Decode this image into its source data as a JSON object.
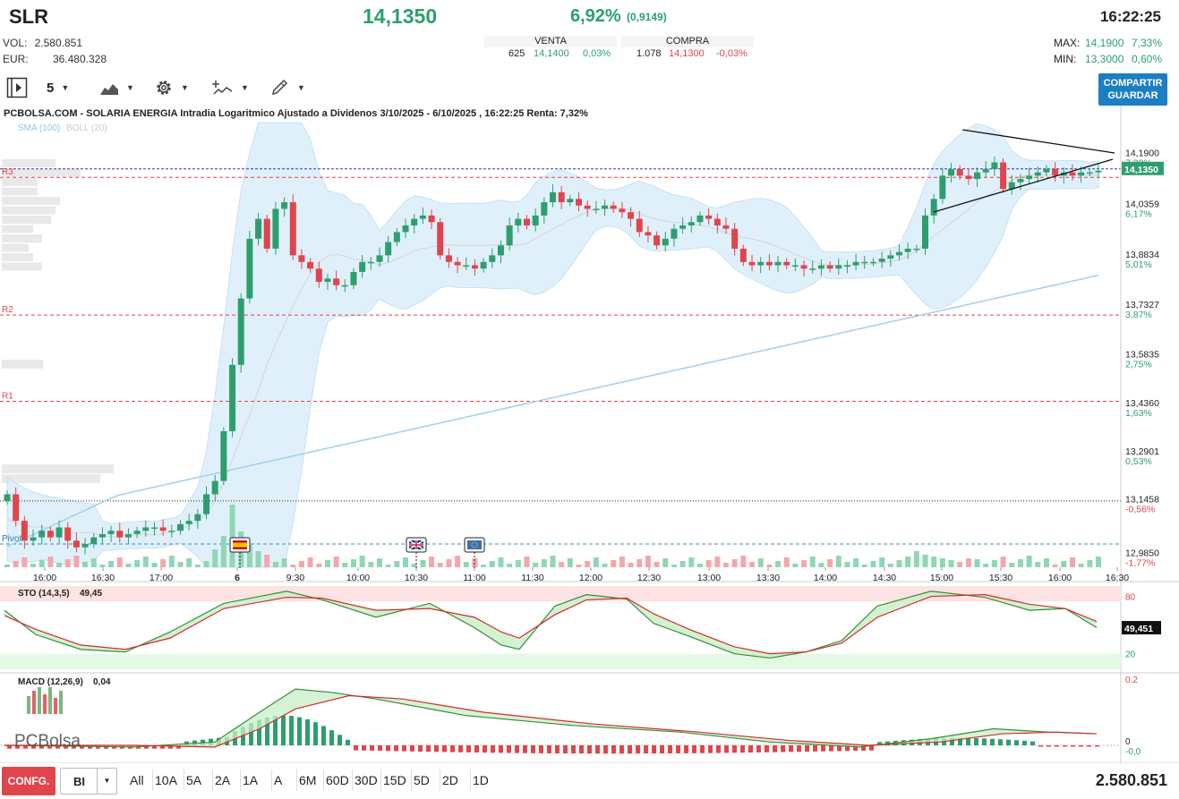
{
  "header": {
    "ticker": "SLR",
    "last_price": "14,1350",
    "change_pct": "6,92%",
    "change_abs": "(0,9149)",
    "time": "16:22:25",
    "vol_label": "VOL:",
    "vol_value": "2.580.851",
    "eur_label": "EUR:",
    "eur_value": "36.480.328",
    "venta": {
      "title": "VENTA",
      "qty": "625",
      "price": "14,1400",
      "pct": "0,03%"
    },
    "compra": {
      "title": "COMPRA",
      "qty": "1.078",
      "price": "14,1300",
      "pct": "-0,03%"
    },
    "max_label": "MAX:",
    "max_price": "14,1900",
    "max_pct": "7,33%",
    "min_label": "MIN:",
    "min_price": "13,3000",
    "min_pct": "0,60%"
  },
  "toolbar": {
    "play_icon": "panel-toggle-icon",
    "interval": "5",
    "chart_type_icon": "mountain-chart-icon",
    "settings_icon": "gear-icon",
    "indicators_icon": "indicators-icon",
    "drawing_icon": "pencil-icon",
    "share_line1": "COMPARTIR",
    "share_line2": "GUARDAR"
  },
  "chart_title": "PCBOLSA.COM - SOLARIA ENERGIA Intradia Logaritmico Ajustado a Dividenos 3/10/2025 - 6/10/2025 , 16:22:25 Renta: 7,32%",
  "legend": {
    "sma": "SMA (100)",
    "boll": "BOLL (20)"
  },
  "levels": {
    "r3": "R3",
    "r2": "R2",
    "r1": "R1",
    "pivot": "Pivot"
  },
  "price_axis": [
    {
      "price": "14,1900",
      "pct": "7,33%"
    },
    {
      "price": "14,0359",
      "pct": "6,17%"
    },
    {
      "price": "13,8834",
      "pct": "5,01%"
    },
    {
      "price": "13,7327",
      "pct": "3,87%"
    },
    {
      "price": "13,5835",
      "pct": "2,75%"
    },
    {
      "price": "13,4360",
      "pct": "1,63%"
    },
    {
      "price": "13,2901",
      "pct": "0,53%"
    },
    {
      "price": "13,1458",
      "pct": "-0,56%"
    },
    {
      "price": "12,9850",
      "pct": "-1,77%"
    }
  ],
  "current_price_tag": "14,1350",
  "time_axis": [
    "16:00",
    "16:30",
    "17:00",
    "6",
    "9:30",
    "10:00",
    "10:30",
    "11:00",
    "11:30",
    "12:00",
    "12:30",
    "13:00",
    "13:30",
    "14:00",
    "14:30",
    "15:00",
    "15:30",
    "16:00",
    "16:30"
  ],
  "event_flags": [
    "spain-flag-icon",
    "uk-flag-icon",
    "eu-flag-icon"
  ],
  "sto": {
    "label": "STO (14,3,5)",
    "value": "49,45",
    "tag": "49,451",
    "upper": "80",
    "lower": "20"
  },
  "macd": {
    "label": "MACD (12,26,9)",
    "value": "0,04",
    "axis_top": "0,2",
    "axis_zero": "0",
    "axis_zero2": "-0,0"
  },
  "logo_text": "PCBolsa",
  "bottom": {
    "conf": "CONFG.",
    "mode": "BI",
    "ranges": [
      "All",
      "10A",
      "5A",
      "2A",
      "1A",
      "A",
      "6M",
      "60D",
      "30D",
      "15D",
      "5D",
      "2D",
      "1D"
    ],
    "volume": "2.580.851"
  },
  "chart_data": {
    "type": "candlestick",
    "title": "PCBOLSA.COM - SOLARIA ENERGIA Intradia Logaritmico Ajustado a Dividenos 3/10/2025 - 6/10/2025 , 16:22:25 Renta: 7,32%",
    "ylim": [
      12.94,
      14.28
    ],
    "close_series": [
      13.16,
      13.08,
      13.02,
      13.03,
      13.05,
      13.03,
      13.06,
      13.02,
      13.0,
      13.01,
      13.03,
      13.04,
      13.05,
      13.03,
      13.04,
      13.05,
      13.06,
      13.06,
      13.05,
      13.05,
      13.07,
      13.08,
      13.1,
      13.16,
      13.2,
      13.35,
      13.55,
      13.75,
      13.93,
      13.99,
      13.9,
      14.02,
      14.04,
      13.88,
      13.86,
      13.84,
      13.8,
      13.81,
      13.79,
      13.79,
      13.83,
      13.86,
      13.86,
      13.88,
      13.92,
      13.95,
      13.97,
      13.99,
      14.0,
      13.98,
      13.88,
      13.86,
      13.85,
      13.85,
      13.84,
      13.86,
      13.88,
      13.91,
      13.97,
      13.99,
      13.97,
      14.0,
      14.04,
      14.07,
      14.04,
      14.05,
      14.03,
      14.02,
      14.02,
      14.03,
      14.02,
      14.01,
      13.99,
      13.95,
      13.94,
      13.91,
      13.93,
      13.96,
      13.97,
      13.98,
      14.0,
      13.99,
      13.97,
      13.96,
      13.9,
      13.86,
      13.85,
      13.86,
      13.85,
      13.86,
      13.85,
      13.85,
      13.84,
      13.84,
      13.85,
      13.84,
      13.85,
      13.85,
      13.86,
      13.86,
      13.86,
      13.87,
      13.88,
      13.89,
      13.9,
      13.9,
      14.0,
      14.05,
      14.12,
      14.14,
      14.12,
      14.11,
      14.13,
      14.14,
      14.16,
      14.08,
      14.1,
      14.11,
      14.12,
      14.13,
      14.14,
      14.12,
      14.13,
      14.12,
      14.13,
      14.13,
      14.135
    ],
    "r3": 14.115,
    "r2": 13.7,
    "r1": 13.44,
    "pivot": 13.01,
    "dotted_level": 13.14,
    "sto_k_end": 49.45,
    "macd_end": 0.04
  }
}
